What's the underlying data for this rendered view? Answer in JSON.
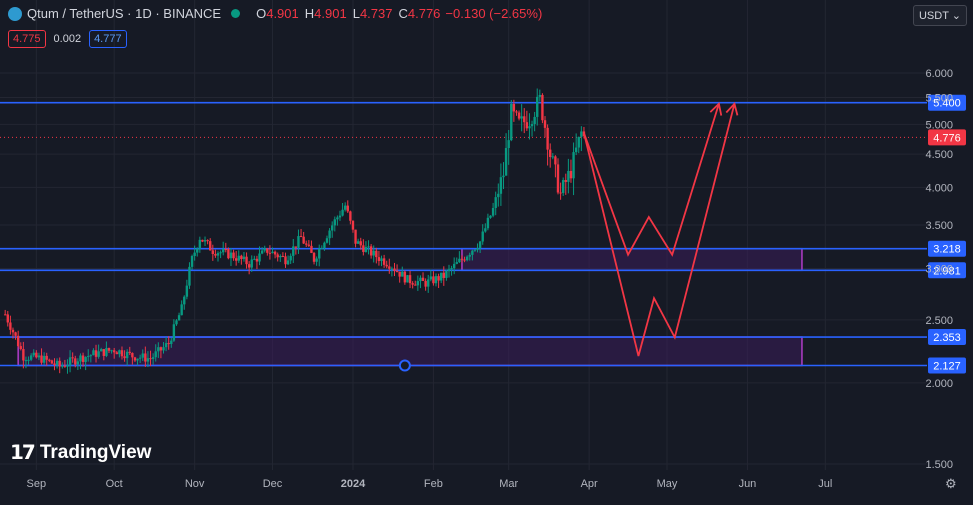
{
  "header": {
    "symbol": "Qtum / TetherUS · 1D · BINANCE",
    "o_label": "O",
    "o_value": "4.901",
    "h_label": "H",
    "h_value": "4.901",
    "l_label": "L",
    "l_value": "4.737",
    "c_label": "C",
    "c_value": "4.776",
    "change": "−0.130 (−2.65%)"
  },
  "quote": {
    "bid": "4.775",
    "spread": "0.002",
    "ask": "4.777"
  },
  "currency_button": "USDT",
  "brand": "TradingView",
  "colors": {
    "background": "#161a25",
    "up": "#089981",
    "down": "#f23645",
    "level_line": "#2962ff",
    "zone_border": "#b03cc7",
    "zone_fill": "#3a1d5a",
    "projection": "#f23645"
  },
  "chart_data": {
    "type": "candlestick",
    "pair": "QTUM/USDT",
    "timeframe": "1D",
    "exchange": "BINANCE",
    "x_ticks": [
      "Sep",
      "Oct",
      "Nov",
      "Dec",
      "2024",
      "Feb",
      "Mar",
      "Apr",
      "May",
      "Jun",
      "Jul"
    ],
    "y_ticks": [
      "6.000",
      "5.500",
      "5.000",
      "4.500",
      "4.000",
      "3.500",
      "3.000",
      "2.500",
      "2.000",
      "1.500"
    ],
    "y_scale": "log",
    "ylim": [
      1.45,
      6.6
    ],
    "last_price": "4.776",
    "horizontal_levels": [
      "5.400",
      "3.218",
      "2.981",
      "2.353",
      "2.127"
    ],
    "zones": [
      {
        "from_date": "2023-08-25",
        "to_date": "2024-06-22",
        "top": 2.353,
        "bottom": 2.127
      },
      {
        "from_date": "2024-02-12",
        "to_date": "2024-06-22",
        "top": 3.218,
        "bottom": 2.981
      }
    ],
    "price_path": [
      [
        "2023-08-20",
        2.55
      ],
      [
        "2023-08-27",
        2.2
      ],
      [
        "2023-09-03",
        2.18
      ],
      [
        "2023-09-10",
        2.12
      ],
      [
        "2023-09-17",
        2.18
      ],
      [
        "2023-09-24",
        2.22
      ],
      [
        "2023-10-01",
        2.25
      ],
      [
        "2023-10-08",
        2.2
      ],
      [
        "2023-10-15",
        2.18
      ],
      [
        "2023-10-22",
        2.3
      ],
      [
        "2023-10-27",
        2.6
      ],
      [
        "2023-10-31",
        3.1
      ],
      [
        "2023-11-03",
        3.35
      ],
      [
        "2023-11-08",
        3.2
      ],
      [
        "2023-11-15",
        3.15
      ],
      [
        "2023-11-22",
        3.05
      ],
      [
        "2023-11-29",
        3.2
      ],
      [
        "2023-12-06",
        3.1
      ],
      [
        "2023-12-12",
        3.35
      ],
      [
        "2023-12-17",
        3.1
      ],
      [
        "2023-12-24",
        3.5
      ],
      [
        "2023-12-29",
        3.75
      ],
      [
        "2024-01-02",
        3.3
      ],
      [
        "2024-01-09",
        3.15
      ],
      [
        "2024-01-15",
        3.05
      ],
      [
        "2024-01-22",
        2.88
      ],
      [
        "2024-01-29",
        2.85
      ],
      [
        "2024-02-05",
        2.92
      ],
      [
        "2024-02-12",
        3.1
      ],
      [
        "2024-02-19",
        3.3
      ],
      [
        "2024-02-24",
        3.7
      ],
      [
        "2024-02-28",
        4.2
      ],
      [
        "2024-03-02",
        5.2
      ],
      [
        "2024-03-05",
        5.0
      ],
      [
        "2024-03-09",
        5.1
      ],
      [
        "2024-03-13",
        5.45
      ],
      [
        "2024-03-17",
        4.5
      ],
      [
        "2024-03-21",
        3.9
      ],
      [
        "2024-03-25",
        4.25
      ],
      [
        "2024-03-29",
        4.85
      ],
      [
        "2024-03-30",
        4.776
      ]
    ],
    "projections": [
      {
        "name": "",
        "points": [
          [
            "2024-03-30",
            4.85
          ],
          [
            "2024-04-16",
            3.15
          ],
          [
            "2024-04-24",
            3.6
          ],
          [
            "2024-05-03",
            3.15
          ],
          [
            "2024-05-21",
            5.38
          ]
        ]
      },
      {
        "name": "",
        "points": [
          [
            "2024-03-30",
            4.85
          ],
          [
            "2024-04-20",
            2.2
          ],
          [
            "2024-04-26",
            2.7
          ],
          [
            "2024-05-04",
            2.35
          ],
          [
            "2024-05-27",
            5.38
          ]
        ]
      }
    ]
  }
}
